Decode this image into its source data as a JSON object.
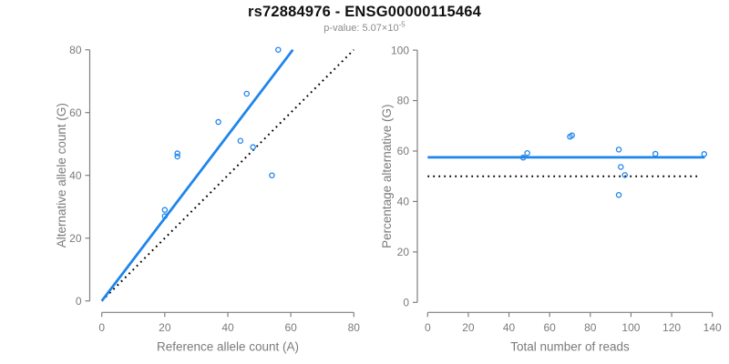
{
  "header": {
    "title": "rs72884976 - ENSG00000115464",
    "subtitle_base": "p-value: 5.07×10",
    "subtitle_exponent": "-5"
  },
  "colors": {
    "accent_blue": "#1f85eb",
    "reference_black": "#000000",
    "axis_line": "#7f7f7f",
    "axis_text": "#7b7b7b",
    "title_text": "#111111",
    "subtitle_text": "#8a8a8a"
  },
  "chart_data": [
    {
      "type": "scatter",
      "panel": "left",
      "xlabel": "Reference allele count (A)",
      "ylabel": "Alternative allele count (G)",
      "xlim": [
        0,
        80
      ],
      "ylim": [
        0,
        80
      ],
      "xticks": [
        0,
        20,
        40,
        60,
        80
      ],
      "yticks": [
        0,
        20,
        40,
        60,
        80
      ],
      "grid": false,
      "legend": null,
      "points": [
        [
          20,
          27
        ],
        [
          20,
          29
        ],
        [
          24,
          46
        ],
        [
          24,
          47
        ],
        [
          37,
          57
        ],
        [
          44,
          51
        ],
        [
          46,
          66
        ],
        [
          48,
          49
        ],
        [
          54,
          40
        ],
        [
          56,
          80
        ]
      ],
      "lines": [
        {
          "name": "identity-line",
          "style": "dotted",
          "color": "black",
          "x1": 0,
          "y1": 0,
          "x2": 80,
          "y2": 80
        },
        {
          "name": "fit-line",
          "style": "solid",
          "color": "blue",
          "x1": 0,
          "y1": 0,
          "x2": 60.65,
          "y2": 80
        }
      ]
    },
    {
      "type": "scatter",
      "panel": "right",
      "xlabel": "Total number of reads",
      "ylabel": "Percentage alternative (G)",
      "xlim": [
        0,
        140
      ],
      "ylim": [
        0,
        100
      ],
      "xticks": [
        0,
        20,
        40,
        60,
        80,
        100,
        120,
        140
      ],
      "yticks": [
        0,
        20,
        40,
        60,
        80,
        100
      ],
      "grid": false,
      "legend": null,
      "points": [
        [
          47,
          57.4
        ],
        [
          49,
          59.2
        ],
        [
          70,
          65.7
        ],
        [
          71,
          66.2
        ],
        [
          94,
          42.6
        ],
        [
          94,
          60.6
        ],
        [
          95,
          53.7
        ],
        [
          97,
          50.5
        ],
        [
          112,
          58.9
        ],
        [
          136,
          58.8
        ]
      ],
      "lines": [
        {
          "name": "reference-line-50pct",
          "style": "dotted",
          "color": "black",
          "x1": 0,
          "y1": 50,
          "x2": 134,
          "y2": 50
        },
        {
          "name": "fit-line",
          "style": "solid",
          "color": "blue",
          "x1": 0,
          "y1": 57.5,
          "x2": 136.3,
          "y2": 57.5
        }
      ]
    }
  ]
}
